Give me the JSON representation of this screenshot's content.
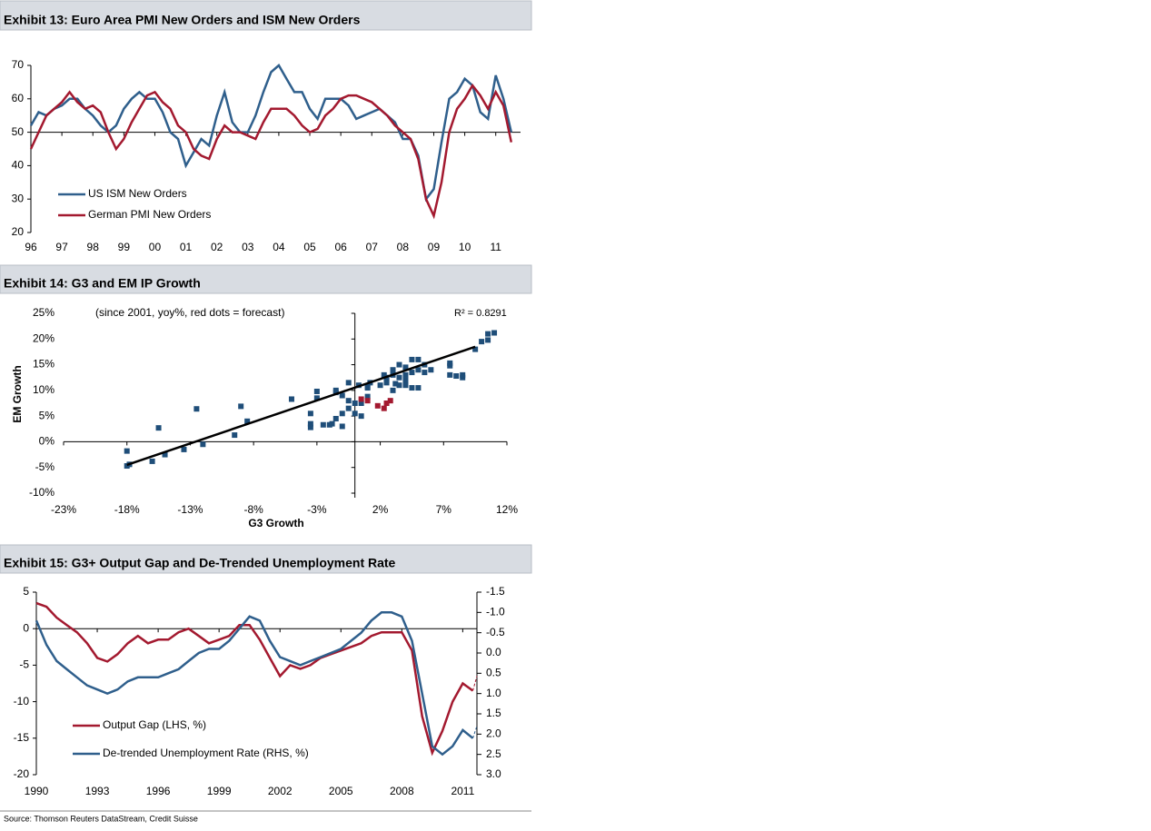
{
  "chart_data": [
    {
      "type": "line",
      "title": "Exhibit 13: Euro Area PMI New Orders and ISM New Orders",
      "x": [
        1996,
        1996.25,
        1996.5,
        1996.75,
        1997,
        1997.25,
        1997.5,
        1997.75,
        1998,
        1998.25,
        1998.5,
        1998.75,
        1999,
        1999.25,
        1999.5,
        1999.75,
        2000,
        2000.25,
        2000.5,
        2000.75,
        2001,
        2001.25,
        2001.5,
        2001.75,
        2002,
        2002.25,
        2002.5,
        2002.75,
        2003,
        2003.25,
        2003.5,
        2003.75,
        2004,
        2004.25,
        2004.5,
        2004.75,
        2005,
        2005.25,
        2005.5,
        2005.75,
        2006,
        2006.25,
        2006.5,
        2006.75,
        2007,
        2007.25,
        2007.5,
        2007.75,
        2008,
        2008.25,
        2008.5,
        2008.75,
        2009,
        2009.25,
        2009.5,
        2009.75,
        2010,
        2010.25,
        2010.5,
        2010.75,
        2011,
        2011.25,
        2011.5
      ],
      "series": [
        {
          "name": "US ISM New Orders",
          "color": "#2f5f8c",
          "values": [
            52,
            56,
            55,
            57,
            58,
            60,
            60,
            57,
            55,
            52,
            50,
            52,
            57,
            60,
            62,
            60,
            60,
            56,
            50,
            48,
            40,
            44,
            48,
            46,
            55,
            62,
            53,
            50,
            50,
            55,
            62,
            68,
            70,
            66,
            62,
            62,
            57,
            54,
            60,
            60,
            60,
            58,
            54,
            55,
            56,
            57,
            55,
            53,
            48,
            48,
            43,
            30,
            33,
            47,
            60,
            62,
            66,
            64,
            56,
            54,
            67,
            60,
            50
          ]
        },
        {
          "name": "German PMI New Orders",
          "color": "#a3192f",
          "values": [
            45,
            50,
            55,
            57,
            59,
            62,
            59,
            57,
            58,
            56,
            50,
            45,
            48,
            53,
            57,
            61,
            62,
            59,
            57,
            52,
            50,
            45,
            43,
            42,
            48,
            52,
            50,
            50,
            49,
            48,
            53,
            57,
            57,
            57,
            55,
            52,
            50,
            51,
            55,
            57,
            60,
            61,
            61,
            60,
            59,
            57,
            55,
            52,
            50,
            48,
            42,
            30,
            25,
            35,
            50,
            57,
            60,
            64,
            61,
            57,
            62,
            58,
            47
          ]
        }
      ],
      "xlim": [
        1996,
        2011.8
      ],
      "xticks": [
        {
          "value": 1996,
          "label": "96"
        },
        {
          "value": 1997,
          "label": "97"
        },
        {
          "value": 1998,
          "label": "98"
        },
        {
          "value": 1999,
          "label": "99"
        },
        {
          "value": 2000,
          "label": "00"
        },
        {
          "value": 2001,
          "label": "01"
        },
        {
          "value": 2002,
          "label": "02"
        },
        {
          "value": 2003,
          "label": "03"
        },
        {
          "value": 2004,
          "label": "04"
        },
        {
          "value": 2005,
          "label": "05"
        },
        {
          "value": 2006,
          "label": "06"
        },
        {
          "value": 2007,
          "label": "07"
        },
        {
          "value": 2008,
          "label": "08"
        },
        {
          "value": 2009,
          "label": "09"
        },
        {
          "value": 2010,
          "label": "10"
        },
        {
          "value": 2011,
          "label": "11"
        }
      ],
      "ylim": [
        20,
        70
      ],
      "yticks": [
        20,
        30,
        40,
        50,
        60,
        70
      ],
      "x_axis_at": 50,
      "legend": "lower left"
    },
    {
      "type": "scatter",
      "title": "Exhibit 14: G3 and EM IP Growth",
      "note": "(since 2001, yoy%, red dots = forecast)",
      "r_squared_label": "R² = 0.8291",
      "x_label": "G3 Growth",
      "y_label": "EM Growth",
      "series": [
        {
          "color": "#1f4e79",
          "x": [
            -18,
            -18,
            -17.8,
            -16,
            -15,
            -15.5,
            -13.5,
            -12,
            -12.5,
            -9.5,
            -9,
            -8.5,
            -5,
            -3.5,
            -3.5,
            -3,
            -2.5,
            -2,
            -1.8,
            -1,
            -1,
            -0.5,
            0,
            -0.5,
            0.3,
            1,
            1,
            2,
            -1.5,
            -0.5,
            -1.5,
            1,
            1.2,
            0.5,
            0,
            0.5,
            -1.5,
            -3.5,
            -3,
            -1,
            2.5,
            3,
            3,
            3.5,
            3.5,
            4,
            4,
            4.5,
            4.5,
            5,
            5,
            5.5,
            5.5,
            6,
            4,
            4.5,
            5,
            3,
            3.5,
            2.5,
            7.5,
            7.5,
            7.5,
            8,
            8.5,
            8.5,
            9.5,
            10,
            10.5,
            10.5,
            11,
            2.3,
            2.5,
            4,
            3.2
          ],
          "values": [
            -1.8,
            -4.7,
            -4.4,
            -3.8,
            -2.5,
            2.7,
            -1.5,
            -0.5,
            6.4,
            1.3,
            6.9,
            4,
            8.3,
            2.8,
            3.5,
            9.8,
            3.3,
            3.3,
            3.5,
            3,
            5.5,
            6.5,
            7.5,
            11.5,
            11,
            10.5,
            8.8,
            11,
            9.6,
            8,
            10,
            10.7,
            11.5,
            7.5,
            5.5,
            5,
            4.5,
            5.5,
            8.5,
            9,
            12,
            13,
            14,
            15,
            12.5,
            13,
            14.5,
            16,
            13.5,
            14,
            16,
            15,
            13.5,
            14,
            11,
            10.5,
            10.5,
            10,
            11,
            11.5,
            13,
            14.8,
            15.3,
            12.8,
            12.5,
            13,
            18,
            19.5,
            19.8,
            21,
            21.2,
            13,
            12.5,
            12,
            11.3
          ]
        },
        {
          "color": "#a3192f",
          "x": [
            0.5,
            1,
            1.8,
            2.3,
            2.8,
            2.5
          ],
          "values": [
            8.3,
            8,
            7,
            6.5,
            8,
            7.5
          ]
        }
      ],
      "trendline": {
        "color": "#000000",
        "x": [
          -18,
          9.5
        ],
        "values": [
          -4.5,
          18.5
        ]
      },
      "xlim": [
        -23,
        12
      ],
      "xticks": [
        {
          "value": -23,
          "label": "-23%"
        },
        {
          "value": -18,
          "label": "-18%"
        },
        {
          "value": -13,
          "label": "-13%"
        },
        {
          "value": -8,
          "label": "-8%"
        },
        {
          "value": -3,
          "label": "-3%"
        },
        {
          "value": 2,
          "label": "2%"
        },
        {
          "value": 7,
          "label": "7%"
        },
        {
          "value": 12,
          "label": "12%"
        }
      ],
      "ylim": [
        -10,
        25
      ],
      "yticks": [
        {
          "value": -10,
          "label": "-10%"
        },
        {
          "value": -5,
          "label": "-5%"
        },
        {
          "value": 0,
          "label": "0%"
        },
        {
          "value": 5,
          "label": "5%"
        },
        {
          "value": 10,
          "label": "10%"
        },
        {
          "value": 15,
          "label": "15%"
        },
        {
          "value": 20,
          "label": "20%"
        },
        {
          "value": 25,
          "label": "25%"
        }
      ],
      "x_axis_at": 0,
      "y_axis_at": 0
    },
    {
      "type": "line",
      "title": "Exhibit 15: G3+ Output Gap and De-Trended Unemployment Rate",
      "x": [
        1990,
        1990.5,
        1991,
        1991.5,
        1992,
        1992.5,
        1993,
        1993.5,
        1994,
        1994.5,
        1995,
        1995.5,
        1996,
        1996.5,
        1997,
        1997.5,
        1998,
        1998.5,
        1999,
        1999.5,
        2000,
        2000.5,
        2001,
        2001.5,
        2002,
        2002.5,
        2003,
        2003.5,
        2004,
        2004.5,
        2005,
        2005.5,
        2006,
        2006.5,
        2007,
        2007.5,
        2008,
        2008.5,
        2009,
        2009.5,
        2010,
        2010.5,
        2011,
        2011.5
      ],
      "series": [
        {
          "name": "Output Gap (LHS, %)",
          "color": "#a3192f",
          "values": [
            3.5,
            3,
            1.5,
            0.5,
            -0.5,
            -2,
            -4,
            -4.5,
            -3.5,
            -2,
            -1,
            -2,
            -1.5,
            -1.5,
            -0.5,
            0,
            -1,
            -2,
            -1.5,
            -1,
            0.5,
            0.5,
            -1.5,
            -4,
            -6.5,
            -5,
            -5.5,
            -5,
            -4,
            -3.5,
            -3,
            -2.5,
            -2,
            -1,
            -0.5,
            -0.5,
            -0.5,
            -3,
            -12,
            -17,
            -14,
            -10,
            -7.5,
            -8.5
          ],
          "forecast": {
            "x": [
              2011.5,
              2011.7
            ],
            "values": [
              -8.5,
              -6.5
            ]
          }
        },
        {
          "name": "De-trended Unemployment Rate (RHS, %)",
          "color": "#2f5f8c",
          "axis": "y2",
          "values": [
            -0.8,
            -0.2,
            0.2,
            0.4,
            0.6,
            0.8,
            0.9,
            1.0,
            0.9,
            0.7,
            0.6,
            0.6,
            0.6,
            0.5,
            0.4,
            0.2,
            0.0,
            -0.1,
            -0.1,
            -0.3,
            -0.6,
            -0.9,
            -0.8,
            -0.3,
            0.1,
            0.2,
            0.3,
            0.2,
            0.1,
            0.0,
            -0.1,
            -0.3,
            -0.5,
            -0.8,
            -1.0,
            -1.0,
            -0.9,
            -0.3,
            1.0,
            2.3,
            2.5,
            2.3,
            1.9,
            2.1
          ],
          "forecast": {
            "x": [
              2011.5,
              2011.7
            ],
            "values": [
              2.1,
              1.8
            ]
          }
        }
      ],
      "xlim": [
        1990,
        2011.7
      ],
      "xticks": [
        1990,
        1993,
        1996,
        1999,
        2002,
        2005,
        2008,
        2011
      ],
      "ylim": [
        -20,
        5
      ],
      "yticks": [
        -20,
        -15,
        -10,
        -5,
        0,
        5
      ],
      "y2lim": [
        3,
        -1.5
      ],
      "y2ticks": [
        {
          "value": 3,
          "label": "3.0"
        },
        2.5,
        {
          "value": 2,
          "label": "2.0"
        },
        1.5,
        {
          "value": 1,
          "label": "1.0"
        },
        0.5,
        {
          "value": 0,
          "label": "0.0"
        },
        -0.5,
        {
          "value": -1,
          "label": "-1.0"
        },
        -1.5
      ],
      "x_axis_at": 0,
      "legend": "lower left"
    }
  ],
  "source": "Source: Thomson Reuters DataStream, Credit Suisse"
}
